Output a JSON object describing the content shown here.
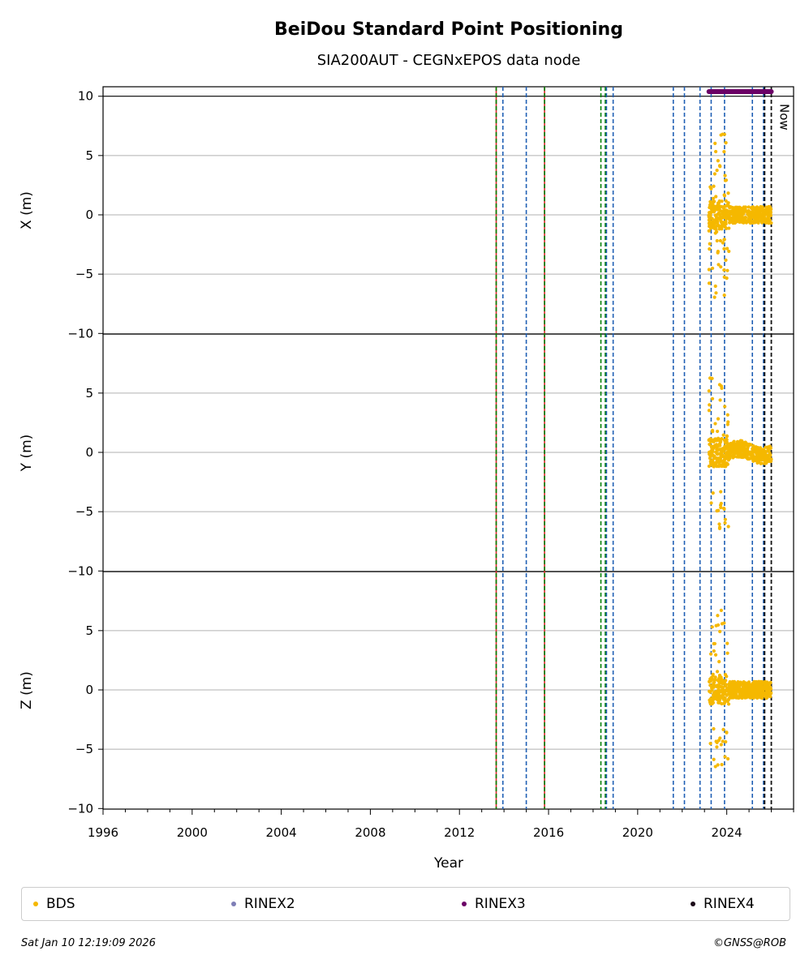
{
  "title": "BeiDou Standard Point Positioning",
  "subtitle": "SIA200AUT - CEGNxEPOS data node",
  "chart_data": {
    "type": "scatter",
    "xlabel": "Year",
    "xlim": [
      1996,
      2027
    ],
    "x_ticks": [
      "1996",
      "2000",
      "2004",
      "2008",
      "2012",
      "2016",
      "2020",
      "2024"
    ],
    "grid": "horizontal",
    "panels": [
      {
        "ylabel": "X (m)",
        "ylim": [
          -10,
          10
        ],
        "y_ticks": [
          "10",
          "5",
          "0",
          "−5",
          "−10"
        ]
      },
      {
        "ylabel": "Y (m)",
        "ylim": [
          -10,
          10
        ],
        "y_ticks": [
          "5",
          "0",
          "−5",
          "−10"
        ]
      },
      {
        "ylabel": "Z (m)",
        "ylim": [
          -10,
          10
        ],
        "y_ticks": [
          "5",
          "0",
          "−5",
          "−10"
        ]
      }
    ],
    "series": [
      {
        "name": "BDS",
        "color": "#f5b800",
        "x_range": [
          2023.2,
          2026.0
        ],
        "y_spread": "0 ± 1 m, outliers up to ±8 m"
      }
    ],
    "rinex3_coverage": [
      2023.2,
      2026.0
    ],
    "rinex3_color": "#6b0066",
    "vlines": {
      "red": [
        2013.65,
        2015.82
      ],
      "green": [
        2013.65,
        2015.82,
        2018.35,
        2018.55
      ],
      "blue": [
        2013.95,
        2015.0,
        2018.6,
        2018.9,
        2021.6,
        2022.1,
        2022.8,
        2023.3,
        2023.9,
        2025.15,
        2025.65
      ],
      "dark": [
        2025.7,
        2026.0
      ]
    },
    "now_label": "Now",
    "now_x": 2026.03,
    "legend_placement": "bottom"
  },
  "legend": [
    {
      "label": "BDS",
      "color": "#f5b800"
    },
    {
      "label": "RINEX2",
      "color": "#7e7eb6"
    },
    {
      "label": "RINEX3",
      "color": "#6b0066"
    },
    {
      "label": "RINEX4",
      "color": "#1a0a18"
    }
  ],
  "footer": {
    "timestamp": "Sat Jan 10 12:19:09 2026",
    "copyright": "©GNSS@ROB"
  }
}
